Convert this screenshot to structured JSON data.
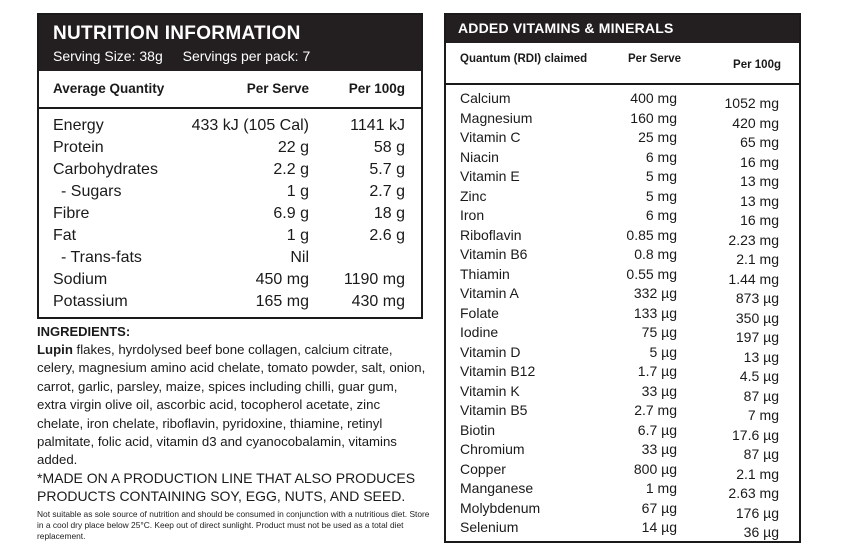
{
  "nutrition": {
    "title": "NUTRITION INFORMATION",
    "serving_size": "Serving Size: 38g",
    "servings_per_pack": "Servings per pack: 7",
    "col_quantity": "Average Quantity",
    "col_serve": "Per Serve",
    "col_100g": "Per 100g",
    "rows": [
      {
        "name": "Energy",
        "serve": "433 kJ (105 Cal)",
        "per100": "1141 kJ"
      },
      {
        "name": "Protein",
        "serve": "22 g",
        "per100": "58 g"
      },
      {
        "name": "Carbohydrates",
        "serve": "2.2 g",
        "per100": "5.7 g"
      },
      {
        "name": "- Sugars",
        "serve": "1 g",
        "per100": "2.7 g"
      },
      {
        "name": "Fibre",
        "serve": "6.9 g",
        "per100": "18 g"
      },
      {
        "name": "Fat",
        "serve": "1 g",
        "per100": "2.6 g"
      },
      {
        "name": "- Trans-fats",
        "serve": "Nil",
        "per100": ""
      },
      {
        "name": "Sodium",
        "serve": "450 mg",
        "per100": "1190 mg"
      },
      {
        "name": "Potassium",
        "serve": "165 mg",
        "per100": "430 mg"
      }
    ]
  },
  "ingredients": {
    "title": "INGREDIENTS:",
    "lead": "Lupin",
    "text": " flakes, hyrdolysed beef bone collagen, calcium citrate, celery, magnesium amino acid chelate, tomato powder, salt, onion, carrot, garlic, parsley, maize, spices including chilli, guar gum, extra virgin olive oil, ascorbic acid, tocopherol acetate, zinc chelate, iron chelate, riboflavin, pyridoxine, thiamine, retinyl palmitate, folic acid, vitamin d3 and cyanocobalamin, vitamins added.",
    "warning": "*MADE ON A PRODUCTION LINE THAT ALSO PRODUCES PRODUCTS CONTAINING SOY, EGG, NUTS, AND SEED.",
    "fine_print": "Not suitable as sole source of nutrition and should be consumed in conjunction with a nutritious diet. Store in a cool dry place below 25°C. Keep out of direct sunlight. Product must not be used as a total diet replacement."
  },
  "vitamins": {
    "title": "ADDED VITAMINS & MINERALS",
    "col_quantum": "Quantum (RDI) claimed",
    "col_serve": "Per Serve",
    "col_100g": "Per 100g",
    "rows": [
      {
        "name": "Calcium",
        "serve": "400 mg",
        "per100": "1052 mg"
      },
      {
        "name": "Magnesium",
        "serve": "160 mg",
        "per100": "420 mg"
      },
      {
        "name": "Vitamin C",
        "serve": "25 mg",
        "per100": "65 mg"
      },
      {
        "name": "Niacin",
        "serve": "6 mg",
        "per100": "16 mg"
      },
      {
        "name": "Vitamin E",
        "serve": "5 mg",
        "per100": "13 mg"
      },
      {
        "name": "Zinc",
        "serve": "5 mg",
        "per100": "13 mg"
      },
      {
        "name": "Iron",
        "serve": "6 mg",
        "per100": "16 mg"
      },
      {
        "name": "Riboflavin",
        "serve": "0.85 mg",
        "per100": "2.23 mg"
      },
      {
        "name": "Vitamin B6",
        "serve": "0.8 mg",
        "per100": "2.1 mg"
      },
      {
        "name": "Thiamin",
        "serve": "0.55 mg",
        "per100": "1.44 mg"
      },
      {
        "name": "Vitamin A",
        "serve": "332 µg",
        "per100": "873 µg"
      },
      {
        "name": "Folate",
        "serve": "133 µg",
        "per100": "350 µg"
      },
      {
        "name": "Iodine",
        "serve": "75 µg",
        "per100": "197 µg"
      },
      {
        "name": "Vitamin D",
        "serve": "5 µg",
        "per100": "13 µg"
      },
      {
        "name": "Vitamin B12",
        "serve": "1.7 µg",
        "per100": "4.5 µg"
      },
      {
        "name": "Vitamin K",
        "serve": "33 µg",
        "per100": "87 µg"
      },
      {
        "name": "Vitamin B5",
        "serve": "2.7 mg",
        "per100": "7 mg"
      },
      {
        "name": "Biotin",
        "serve": "6.7 µg",
        "per100": "17.6 µg"
      },
      {
        "name": "Chromium",
        "serve": "33 µg",
        "per100": "87 µg"
      },
      {
        "name": "Copper",
        "serve": "800 µg",
        "per100": "2.1 mg"
      },
      {
        "name": "Manganese",
        "serve": "1 mg",
        "per100": "2.63 mg"
      },
      {
        "name": "Molybdenum",
        "serve": "67 µg",
        "per100": "176 µg"
      },
      {
        "name": "Selenium",
        "serve": "14 µg",
        "per100": "36 µg"
      }
    ]
  }
}
